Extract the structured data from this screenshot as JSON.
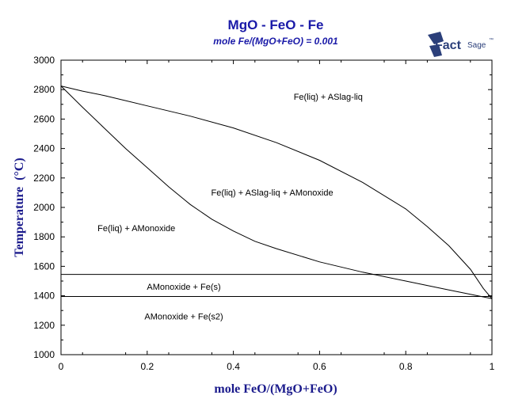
{
  "chart_data": {
    "type": "line",
    "title": "MgO - FeO - Fe",
    "subtitle": "mole Fe/(MgO+FeO) = 0.001",
    "xlabel": "mole FeO/(MgO+FeO)",
    "ylabel_main": "Temperature",
    "ylabel_unit": "(°C)",
    "xlim": [
      0,
      1
    ],
    "ylim": [
      1000,
      3000
    ],
    "x_ticks": [
      0,
      0.2,
      0.4,
      0.6,
      0.8,
      1
    ],
    "x_tick_labels": [
      "0",
      "0.2",
      "0.4",
      "0.6",
      "0.8",
      "1"
    ],
    "y_ticks": [
      1000,
      1200,
      1400,
      1600,
      1800,
      2000,
      2200,
      2400,
      2600,
      2800,
      3000
    ],
    "y_tick_labels": [
      "1000",
      "1200",
      "1400",
      "1600",
      "1800",
      "2000",
      "2200",
      "2400",
      "2600",
      "2800",
      "3000"
    ],
    "grid": false,
    "series": [
      {
        "x": [
          0,
          0.05,
          0.1,
          0.2,
          0.3,
          0.4,
          0.5,
          0.6,
          0.7,
          0.8,
          0.85,
          0.9,
          0.95,
          0.98,
          1
        ],
        "y": [
          2825,
          2790,
          2760,
          2690,
          2620,
          2540,
          2440,
          2320,
          2170,
          1990,
          1870,
          1740,
          1580,
          1450,
          1380
        ]
      },
      {
        "x": [
          0,
          0.05,
          0.1,
          0.15,
          0.2,
          0.25,
          0.3,
          0.35,
          0.4,
          0.45,
          0.5,
          0.6,
          0.7,
          0.8,
          0.9,
          1
        ],
        "y": [
          2825,
          2680,
          2540,
          2400,
          2270,
          2140,
          2020,
          1920,
          1840,
          1770,
          1720,
          1630,
          1560,
          1500,
          1440,
          1380
        ]
      },
      {
        "x": [
          0,
          1
        ],
        "y": [
          1545,
          1545
        ]
      },
      {
        "x": [
          0,
          1
        ],
        "y": [
          1395,
          1395
        ]
      }
    ],
    "annotations": [
      {
        "text": "Fe(liq) + ASlag-liq",
        "x": 0.62,
        "y": 2730
      },
      {
        "text": "Fe(liq) + ASlag-liq + AMonoxide",
        "x": 0.49,
        "y": 2080
      },
      {
        "text": "Fe(liq) + AMonoxide",
        "x": 0.175,
        "y": 1840
      },
      {
        "text": "AMonoxide + Fe(s)",
        "x": 0.285,
        "y": 1440
      },
      {
        "text": "AMonoxide + Fe(s2)",
        "x": 0.285,
        "y": 1240
      }
    ]
  },
  "logo": {
    "brand": "FactSage",
    "brand_bold": "Fact",
    "brand_light": "Sage",
    "mark": "™",
    "icon": "factsage-logo-icon"
  }
}
